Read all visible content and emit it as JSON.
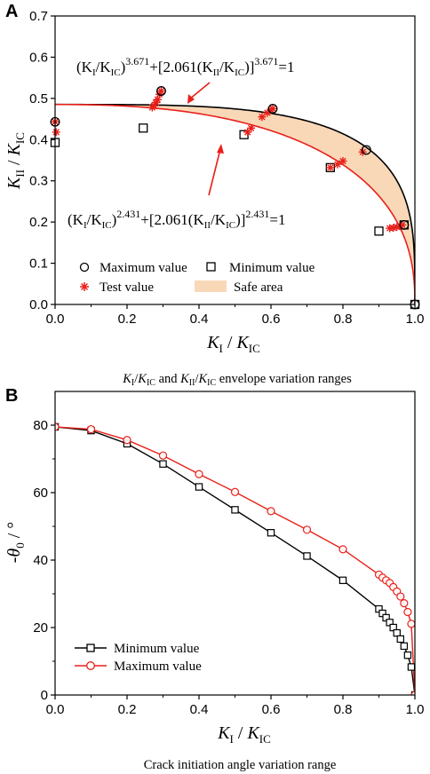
{
  "chart_data": [
    {
      "type": "scatter",
      "panel_label": "A",
      "caption": {
        "k1": "K",
        "k1sub": "I",
        "slash": "/",
        "kic": "K",
        "kicsub": "IC",
        "and": "and",
        "k2": "K",
        "k2sub": "II",
        "slash2": "/",
        "kic2": "K",
        "kic2sub": "IC",
        "rest": "envelope variation ranges"
      },
      "xlabel": {
        "k": "K",
        "ksub": "I",
        "sep": " / ",
        "kic": "K",
        "kicsub": "IC"
      },
      "ylabel": {
        "k": "K",
        "ksub": "II",
        "sep": " / ",
        "kic": "K",
        "kicsub": "IC"
      },
      "xlim": [
        0.0,
        1.0
      ],
      "ylim": [
        0.0,
        0.7
      ],
      "xticks": [
        "0.0",
        "0.2",
        "0.4",
        "0.6",
        "0.8",
        "1.0"
      ],
      "yticks": [
        "0.0",
        "0.1",
        "0.2",
        "0.3",
        "0.4",
        "0.5",
        "0.6",
        "0.7"
      ],
      "x_tick_values": [
        0.0,
        0.2,
        0.4,
        0.6,
        0.8,
        1.0
      ],
      "y_tick_values": [
        0.0,
        0.1,
        0.2,
        0.3,
        0.4,
        0.5,
        0.6,
        0.7
      ],
      "upper_curve": {
        "a": 3.671,
        "b": 2.061,
        "color": "#000000"
      },
      "lower_curve": {
        "a": 2.431,
        "b": 2.061,
        "color": "#e8201a"
      },
      "fill_color": "#f9d8b8",
      "equation_upper": {
        "p1": "(K",
        "s1": "I",
        "p2": "/K",
        "s2": "IC",
        "p3": ")",
        "e1": "3.671",
        "p4": "+[2.061(K",
        "s3": "II",
        "p5": "/K",
        "s4": "IC",
        "p6": ")]",
        "e2": "3.671",
        "p7": "=1"
      },
      "equation_lower": {
        "p1": "(K",
        "s1": "I",
        "p2": "/K",
        "s2": "IC",
        "p3": ")",
        "e1": "2.431",
        "p4": "+[2.061(K",
        "s3": "II",
        "p5": "/K",
        "s4": "IC",
        "p6": ")]",
        "e2": "2.431",
        "p7": "=1"
      },
      "series": [
        {
          "name": "Maximum value",
          "marker": "circle",
          "x": [
            0.0,
            0.295,
            0.605,
            0.865,
            0.97,
            1.0
          ],
          "y": [
            0.443,
            0.518,
            0.475,
            0.375,
            0.193,
            0.0
          ]
        },
        {
          "name": "Minimum value",
          "marker": "square",
          "x": [
            0.0,
            0.245,
            0.525,
            0.765,
            0.9,
            0.97,
            1.0
          ],
          "y": [
            0.393,
            0.428,
            0.412,
            0.332,
            0.178,
            0.193,
            0.0
          ]
        },
        {
          "name": "Test value",
          "marker": "star",
          "x": [
            0.0,
            0.003,
            0.27,
            0.275,
            0.28,
            0.285,
            0.29,
            0.295,
            0.535,
            0.545,
            0.575,
            0.59,
            0.6,
            0.605,
            0.765,
            0.785,
            0.8,
            0.855,
            0.93,
            0.94,
            0.95,
            0.96,
            0.965
          ],
          "y": [
            0.443,
            0.418,
            0.478,
            0.482,
            0.49,
            0.497,
            0.51,
            0.518,
            0.418,
            0.428,
            0.455,
            0.465,
            0.472,
            0.475,
            0.332,
            0.34,
            0.348,
            0.37,
            0.185,
            0.186,
            0.188,
            0.19,
            0.193
          ]
        }
      ],
      "legend": {
        "max": "Maximum value",
        "min": "Minimum value",
        "test": "Test value",
        "safe": "Safe area"
      }
    },
    {
      "type": "line",
      "panel_label": "B",
      "caption": "Crack initiation angle variation range",
      "xlabel": {
        "k": "K",
        "ksub": "I",
        "sep": " / ",
        "kic": "K",
        "kicsub": "IC"
      },
      "ylabel": {
        "minus": "-",
        "theta": "θ",
        "sub": "0",
        "unit": " / °"
      },
      "xlim": [
        0.0,
        1.0
      ],
      "ylim": [
        0,
        90
      ],
      "xticks": [
        "0.0",
        "0.2",
        "0.4",
        "0.6",
        "0.8",
        "1.0"
      ],
      "yticks": [
        "0",
        "20",
        "40",
        "60",
        "80"
      ],
      "x_tick_values": [
        0.0,
        0.2,
        0.4,
        0.6,
        0.8,
        1.0
      ],
      "y_tick_values": [
        0,
        20,
        40,
        60,
        80
      ],
      "series": [
        {
          "name": "Minimum value",
          "color": "#000000",
          "marker": "square",
          "x": [
            0.0,
            0.1,
            0.2,
            0.3,
            0.4,
            0.5,
            0.6,
            0.7,
            0.8,
            0.9,
            0.91,
            0.92,
            0.93,
            0.94,
            0.95,
            0.96,
            0.97,
            0.98,
            0.99,
            1.0
          ],
          "y": [
            79.5,
            78.4,
            74.5,
            68.5,
            61.7,
            54.9,
            48.1,
            41.2,
            34.0,
            25.5,
            24.2,
            22.9,
            21.5,
            20.0,
            18.4,
            16.6,
            14.5,
            11.8,
            8.3,
            0.0
          ]
        },
        {
          "name": "Maximum value",
          "color": "#e8201a",
          "marker": "circle",
          "x": [
            0.0,
            0.1,
            0.2,
            0.3,
            0.4,
            0.5,
            0.6,
            0.7,
            0.8,
            0.9,
            0.91,
            0.92,
            0.93,
            0.94,
            0.95,
            0.96,
            0.97,
            0.98,
            0.99,
            1.0
          ],
          "y": [
            79.5,
            78.8,
            75.6,
            71.0,
            65.5,
            60.2,
            54.5,
            49.0,
            43.2,
            35.7,
            34.8,
            34.0,
            33.2,
            32.0,
            30.7,
            29.2,
            27.2,
            24.6,
            21.1,
            0.0
          ]
        }
      ],
      "legend": {
        "min": "Minimum value",
        "max": "Maximum value"
      },
      "legend_position": "bottom-left"
    }
  ]
}
